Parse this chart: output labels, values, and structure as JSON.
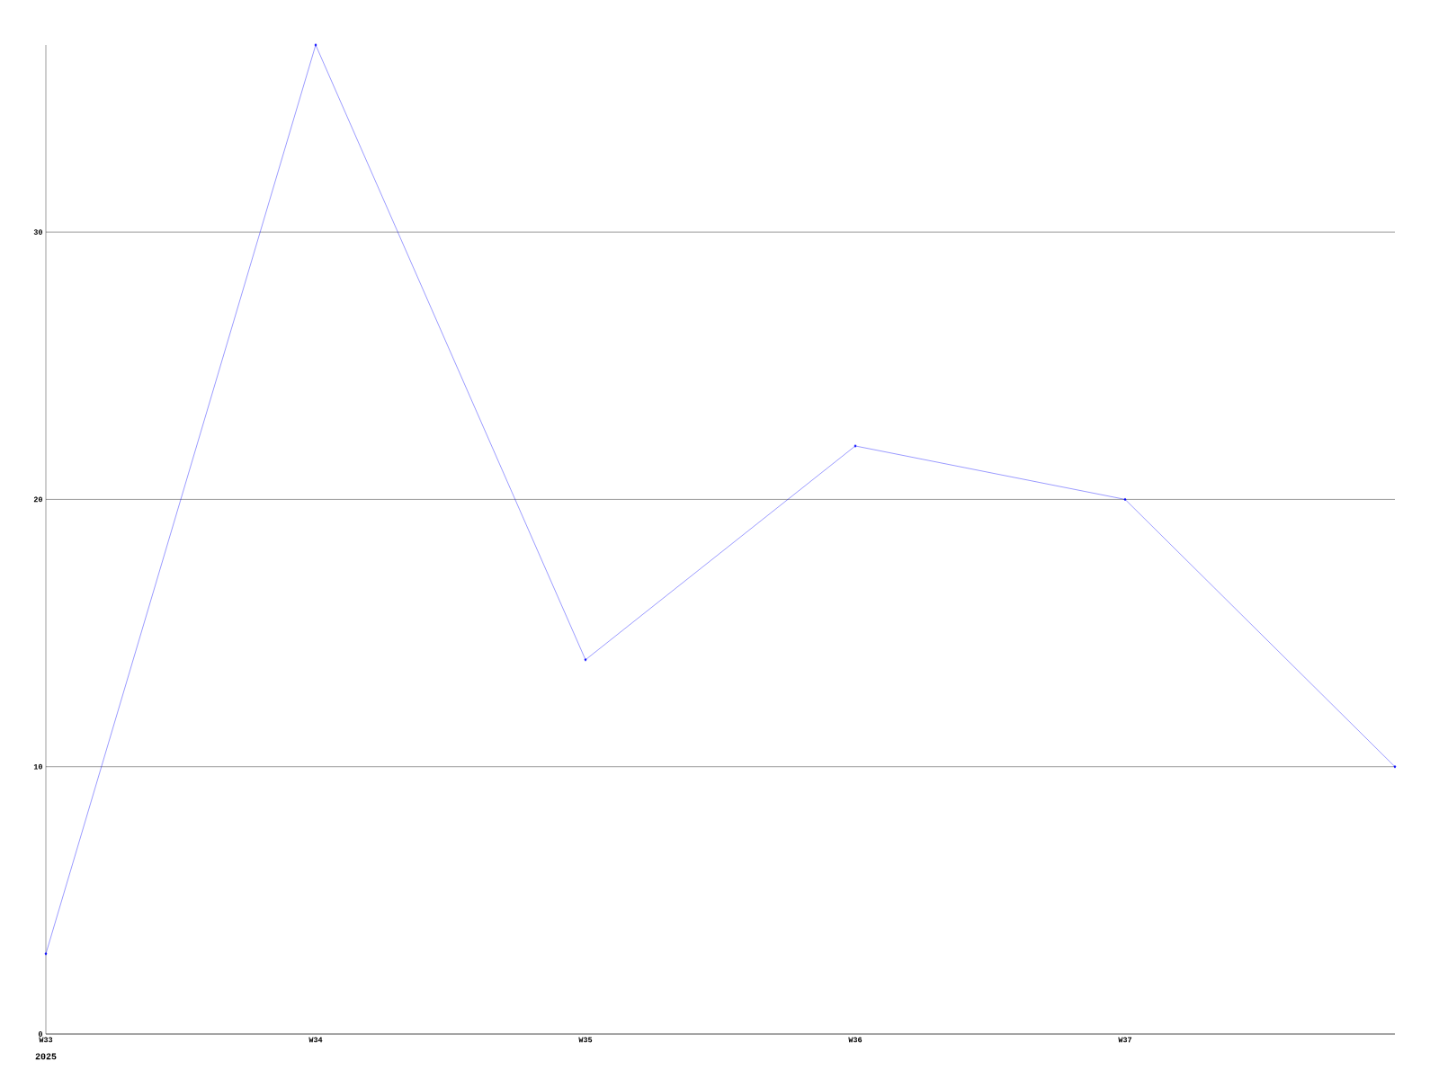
{
  "chart_data": {
    "type": "line",
    "categories": [
      "W33",
      "W34",
      "W35",
      "W36",
      "W37",
      null
    ],
    "values": [
      3,
      37,
      14,
      22,
      20,
      10
    ],
    "color": "#0000ff",
    "ylim": [
      0,
      37
    ],
    "yticks": [
      0,
      10,
      20,
      30
    ],
    "grid": "y",
    "marker": "diamond",
    "line_style": "solid",
    "annotations": [
      "2025"
    ]
  }
}
